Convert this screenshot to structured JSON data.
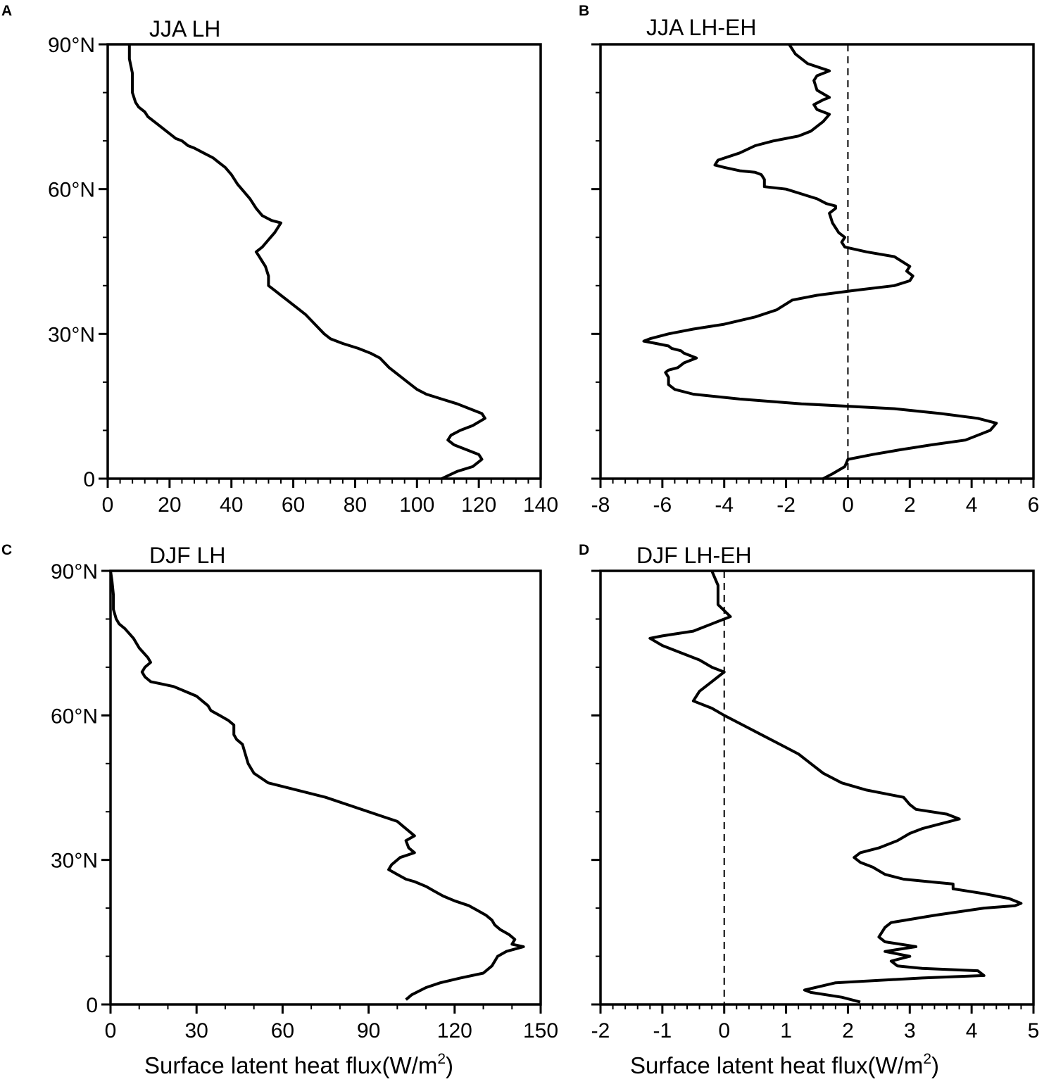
{
  "figure": {
    "xlabel": "Surface latent heat flux(W/m",
    "xlabel_sup": "2",
    "xlabel_end": ")"
  },
  "chart_data": [
    {
      "type": "line",
      "panel": "A",
      "title": "JJA LH",
      "xlabel": "",
      "ylabel": "",
      "xlim": [
        0,
        140
      ],
      "ylim": [
        0,
        90
      ],
      "x_ticks": [
        "0",
        "20",
        "40",
        "60",
        "80",
        "100",
        "120",
        "140"
      ],
      "y_ticks": [
        "0",
        "30°N",
        "60°N",
        "90°N"
      ],
      "zero_line": false,
      "series": [
        {
          "x": [
            108,
            113,
            118,
            121,
            120,
            116,
            112,
            110,
            111,
            114,
            118,
            122,
            121,
            117,
            113,
            108,
            103,
            100,
            97,
            94,
            91,
            88,
            85,
            81,
            76,
            72,
            70,
            67,
            64,
            62,
            60,
            58,
            56,
            54,
            52,
            52,
            51,
            50,
            49,
            48,
            50,
            54,
            56,
            53,
            50,
            48,
            46,
            44,
            42,
            40,
            38,
            36,
            34,
            31,
            28,
            26,
            24,
            22,
            19,
            16,
            13,
            12,
            10,
            9,
            8,
            8,
            7,
            7
          ],
          "y": [
            0,
            1.5,
            2.5,
            4,
            5,
            6,
            7,
            8,
            9,
            10,
            11,
            12.5,
            13.5,
            14.5,
            15.5,
            16.5,
            17.5,
            18.5,
            20,
            21.5,
            23,
            25,
            26,
            27,
            28,
            29,
            30,
            32,
            34,
            35,
            36,
            37,
            38,
            39,
            40,
            42,
            44,
            45,
            46,
            47,
            48,
            51,
            53,
            53.5,
            54.5,
            56,
            58,
            59.5,
            61,
            63,
            64.5,
            65.5,
            66.5,
            67.5,
            68.5,
            69,
            70,
            70.5,
            72,
            73.5,
            75,
            76,
            77,
            78,
            80,
            84,
            87,
            90
          ]
        }
      ]
    },
    {
      "type": "line",
      "panel": "B",
      "title": "JJA LH-EH",
      "xlabel": "",
      "ylabel": "",
      "xlim": [
        -8,
        6
      ],
      "ylim": [
        0,
        90
      ],
      "x_ticks": [
        "-8",
        "-6",
        "-4",
        "-2",
        "0",
        "2",
        "4",
        "6"
      ],
      "y_ticks": [
        "",
        "",
        "",
        ""
      ],
      "zero_line": true,
      "series": [
        {
          "x": [
            -0.8,
            -0.5,
            -0.1,
            0,
            0.8,
            1.7,
            2.7,
            3.8,
            4.6,
            4.8,
            4.2,
            3.0,
            1.5,
            -1.5,
            -3.5,
            -5.0,
            -5.6,
            -5.8,
            -5.8,
            -5.9,
            -5.8,
            -5.5,
            -5.3,
            -4.9,
            -5.3,
            -5.4,
            -5.7,
            -5.8,
            -6.2,
            -6.6,
            -6.4,
            -5.8,
            -5.0,
            -4.0,
            -3.0,
            -2.3,
            -1.8,
            -1.0,
            0.2,
            1.5,
            2.0,
            2.1,
            1.9,
            2.0,
            1.5,
            0.6,
            -0.1,
            -0.2,
            -0.1,
            -0.3,
            -0.4,
            -0.5,
            -0.6,
            -0.4,
            -0.4,
            -0.7,
            -1.0,
            -1.5,
            -2.0,
            -2.7,
            -2.7,
            -2.8,
            -3.0,
            -3.5,
            -4.0,
            -4.3,
            -4.2,
            -3.5,
            -3.0,
            -2.4,
            -1.6,
            -1.2,
            -0.8,
            -0.6,
            -1.0,
            -1.1,
            -0.8,
            -0.6,
            -1.0,
            -1.1,
            -1.0,
            -0.6,
            -1.3,
            -1.7,
            -1.9
          ],
          "y": [
            0,
            1,
            2.5,
            4,
            5,
            6,
            7,
            8,
            10,
            11.5,
            12.5,
            13.5,
            14.5,
            15.5,
            16.5,
            17.5,
            18.5,
            19.5,
            21,
            22,
            22.5,
            23,
            24,
            25,
            26,
            26.5,
            27,
            27.5,
            28,
            28.5,
            29,
            30,
            31,
            32,
            33.5,
            35,
            37,
            38,
            39,
            40,
            41,
            42,
            43,
            44,
            46,
            47,
            48,
            49,
            50,
            51,
            52,
            53,
            55,
            56,
            56.5,
            57,
            58,
            59,
            60,
            60.5,
            62,
            63,
            63.5,
            63.8,
            64.5,
            65,
            66,
            67.5,
            69,
            70,
            71,
            72,
            74,
            75.5,
            76.5,
            77.5,
            78.5,
            79,
            80.5,
            82.5,
            83.5,
            84.5,
            86,
            88,
            90
          ]
        }
      ]
    },
    {
      "type": "line",
      "panel": "C",
      "title": "DJF LH",
      "xlabel": "Surface latent heat flux(W/m2)",
      "ylabel": "",
      "xlim": [
        0,
        150
      ],
      "ylim": [
        0,
        90
      ],
      "x_ticks": [
        "0",
        "30",
        "60",
        "90",
        "120",
        "150"
      ],
      "y_ticks": [
        "0",
        "30°N",
        "60°N",
        "90°N"
      ],
      "zero_line": false,
      "series": [
        {
          "x": [
            103,
            105,
            110,
            115,
            122,
            130,
            133,
            135,
            138,
            141,
            144,
            140,
            141,
            139,
            136,
            134,
            133,
            131,
            128,
            125,
            120,
            116,
            113,
            110,
            106,
            103,
            100,
            97,
            98,
            101,
            106,
            104,
            103,
            106,
            104,
            102,
            100,
            95,
            85,
            75,
            65,
            55,
            50,
            48,
            47,
            46,
            44,
            43,
            43,
            41,
            38,
            35,
            34,
            32,
            30,
            26,
            22,
            18,
            14,
            12,
            11,
            12,
            14,
            13,
            10,
            8,
            5,
            3,
            2,
            1,
            1,
            0.5,
            0
          ],
          "y": [
            1,
            2,
            3.5,
            4.5,
            5.5,
            6.5,
            8,
            10,
            11,
            11.5,
            12,
            12.5,
            13.5,
            14.5,
            15.5,
            16.5,
            17.5,
            18.5,
            19.5,
            20.5,
            21.5,
            22.5,
            23.5,
            24.5,
            25.5,
            26,
            27,
            28,
            29,
            30.5,
            31.5,
            32.5,
            34,
            35,
            36,
            37,
            38,
            39,
            41,
            43,
            44.5,
            46,
            48,
            50,
            52,
            54,
            55,
            56,
            58,
            59,
            60,
            61,
            62,
            63,
            64,
            65,
            66,
            66.5,
            67,
            68,
            69,
            70,
            71,
            72,
            74,
            76,
            78,
            79,
            80,
            82,
            85,
            88,
            90
          ]
        }
      ]
    },
    {
      "type": "line",
      "panel": "D",
      "title": "DJF LH-EH",
      "xlabel": "Surface latent heat flux(W/m2)",
      "ylabel": "",
      "xlim": [
        -2,
        5
      ],
      "ylim": [
        0,
        90
      ],
      "x_ticks": [
        "-2",
        "-1",
        "0",
        "1",
        "2",
        "3",
        "4",
        "5"
      ],
      "y_ticks": [
        "",
        "",
        "",
        ""
      ],
      "zero_line": true,
      "series": [
        {
          "x": [
            2.2,
            1.9,
            1.4,
            1.3,
            1.8,
            3.2,
            4.2,
            4.1,
            3.2,
            2.8,
            2.7,
            3.0,
            2.6,
            3.1,
            2.6,
            2.5,
            2.6,
            2.7,
            3.4,
            4.2,
            4.7,
            4.8,
            4.6,
            4.2,
            3.7,
            3.7,
            3.3,
            2.9,
            2.6,
            2.4,
            2.2,
            2.1,
            2.2,
            2.5,
            2.8,
            3.0,
            3.2,
            3.5,
            3.8,
            3.6,
            3.1,
            3.0,
            2.9,
            2.3,
            1.9,
            1.6,
            1.4,
            1.2,
            0.9,
            0.6,
            0.3,
            0,
            -0.2,
            -0.5,
            -0.4,
            -0.2,
            0,
            -0.2,
            -0.4,
            -0.7,
            -1.0,
            -1.2,
            -1.0,
            -0.5,
            -0.2,
            0.1,
            -0.1,
            -0.1,
            -0.2
          ],
          "y": [
            0.5,
            1.5,
            2.5,
            3,
            4.5,
            5.5,
            6,
            7,
            7.5,
            8,
            9,
            10,
            11,
            12,
            13,
            14,
            16,
            17,
            18.5,
            20,
            20.5,
            21,
            22,
            23,
            24,
            25,
            25.5,
            26,
            27,
            28.5,
            29.5,
            30.5,
            31.5,
            32.5,
            34,
            35.5,
            36.5,
            37.5,
            38.5,
            39.5,
            40.5,
            41.5,
            43,
            44.5,
            46,
            48,
            50,
            52,
            54,
            56,
            58,
            60,
            61.5,
            63,
            65,
            67,
            69,
            70,
            71.5,
            73,
            74.5,
            76,
            76.5,
            77.5,
            79,
            80.5,
            83,
            87,
            90
          ]
        }
      ]
    }
  ]
}
